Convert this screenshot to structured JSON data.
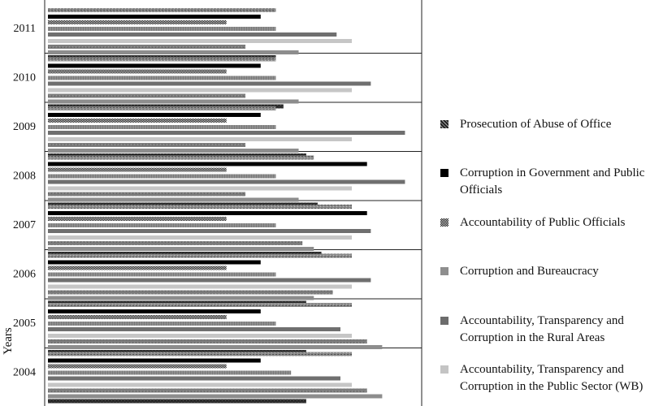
{
  "chart_data": {
    "type": "bar",
    "orientation": "horizontal",
    "ylabel": "Years",
    "categories": [
      "2011",
      "2010",
      "2009",
      "2008",
      "2007",
      "2006",
      "2005",
      "2004"
    ],
    "series": [
      {
        "name": "Prosecution of Abuse of Office",
        "pattern": "speckled",
        "values": [
          30,
          30,
          30,
          35,
          40,
          40,
          40,
          40
        ]
      },
      {
        "name": "Corruption in Government and Public Officials",
        "pattern": "solid",
        "values": [
          28,
          28,
          28,
          42,
          42,
          28,
          28,
          28
        ]
      },
      {
        "name": "Accountability of Public Officials",
        "pattern": "checkered",
        "values": [
          23.5,
          23.5,
          23.5,
          23.5,
          23.5,
          23.5,
          23.5,
          23.5
        ]
      },
      {
        "name": "Corruption and Bureaucracy",
        "pattern": "hatched",
        "values": [
          30,
          30,
          30,
          30,
          30,
          30,
          30,
          32
        ]
      },
      {
        "name": "Accountability, Transparency and Corruption in the Rural Areas",
        "pattern": "dark-gray",
        "values": [
          38,
          42.5,
          47,
          47,
          42.5,
          42.5,
          38.5,
          38.5
        ]
      },
      {
        "name": "Accountability, Transparency and Corruption in the Public Sector (WB)",
        "pattern": "light-gray",
        "values": [
          40,
          40,
          40,
          40,
          40,
          40,
          40,
          40
        ]
      },
      {
        "name": "",
        "pattern": "noisy-gray",
        "values": [
          26,
          26,
          26,
          26,
          33.5,
          37.5,
          42,
          42
        ]
      },
      {
        "name": "",
        "pattern": "medium-gray",
        "values": [
          33,
          33,
          33,
          33,
          35,
          35,
          44,
          44
        ]
      },
      {
        "name": "",
        "pattern": "dark-noisy",
        "values": [
          30,
          31,
          34,
          35.5,
          36,
          34,
          34,
          34
        ]
      }
    ],
    "xlim": [
      0,
      50
    ],
    "legend_position": "right",
    "grid": false
  }
}
